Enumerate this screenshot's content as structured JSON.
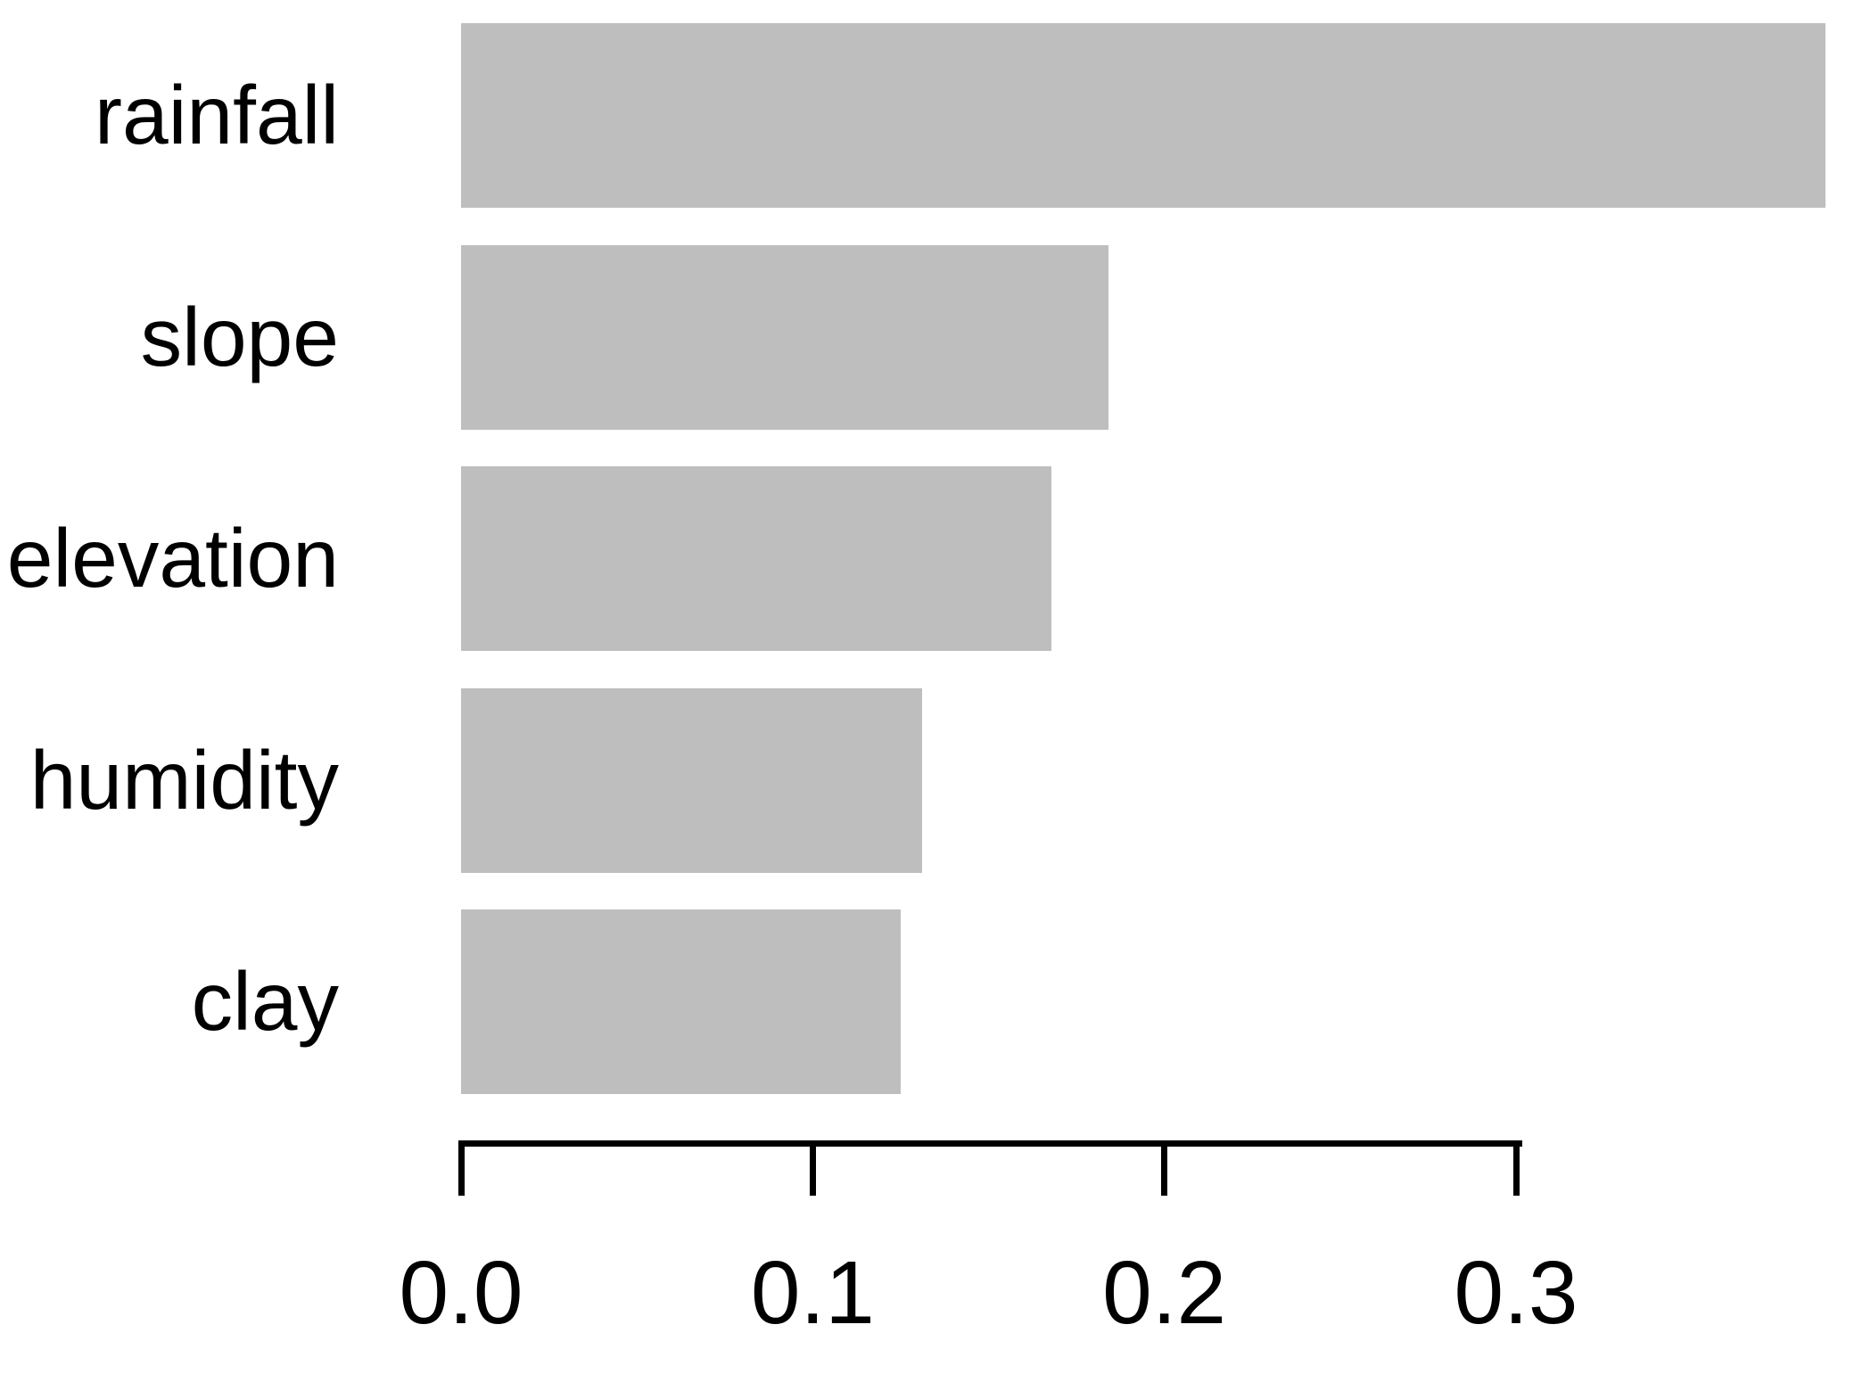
{
  "chart_data": {
    "type": "bar",
    "orientation": "horizontal",
    "title": "",
    "xlabel": "",
    "ylabel": "",
    "categories": [
      "rainfall",
      "slope",
      "elevation",
      "humidity",
      "clay"
    ],
    "values": [
      0.388,
      0.184,
      0.168,
      0.131,
      0.125
    ],
    "axis_ticks": [
      0.0,
      0.1,
      0.2,
      0.3
    ],
    "axis_tick_labels": [
      "0.0",
      "0.1",
      "0.2",
      "0.3"
    ],
    "xlim": [
      0,
      0.3
    ],
    "grid": "off",
    "legend": "none",
    "bar_color": "#bebebe",
    "axis_color": "#000000",
    "text_color": "#000000",
    "background_color": "#ffffff"
  }
}
